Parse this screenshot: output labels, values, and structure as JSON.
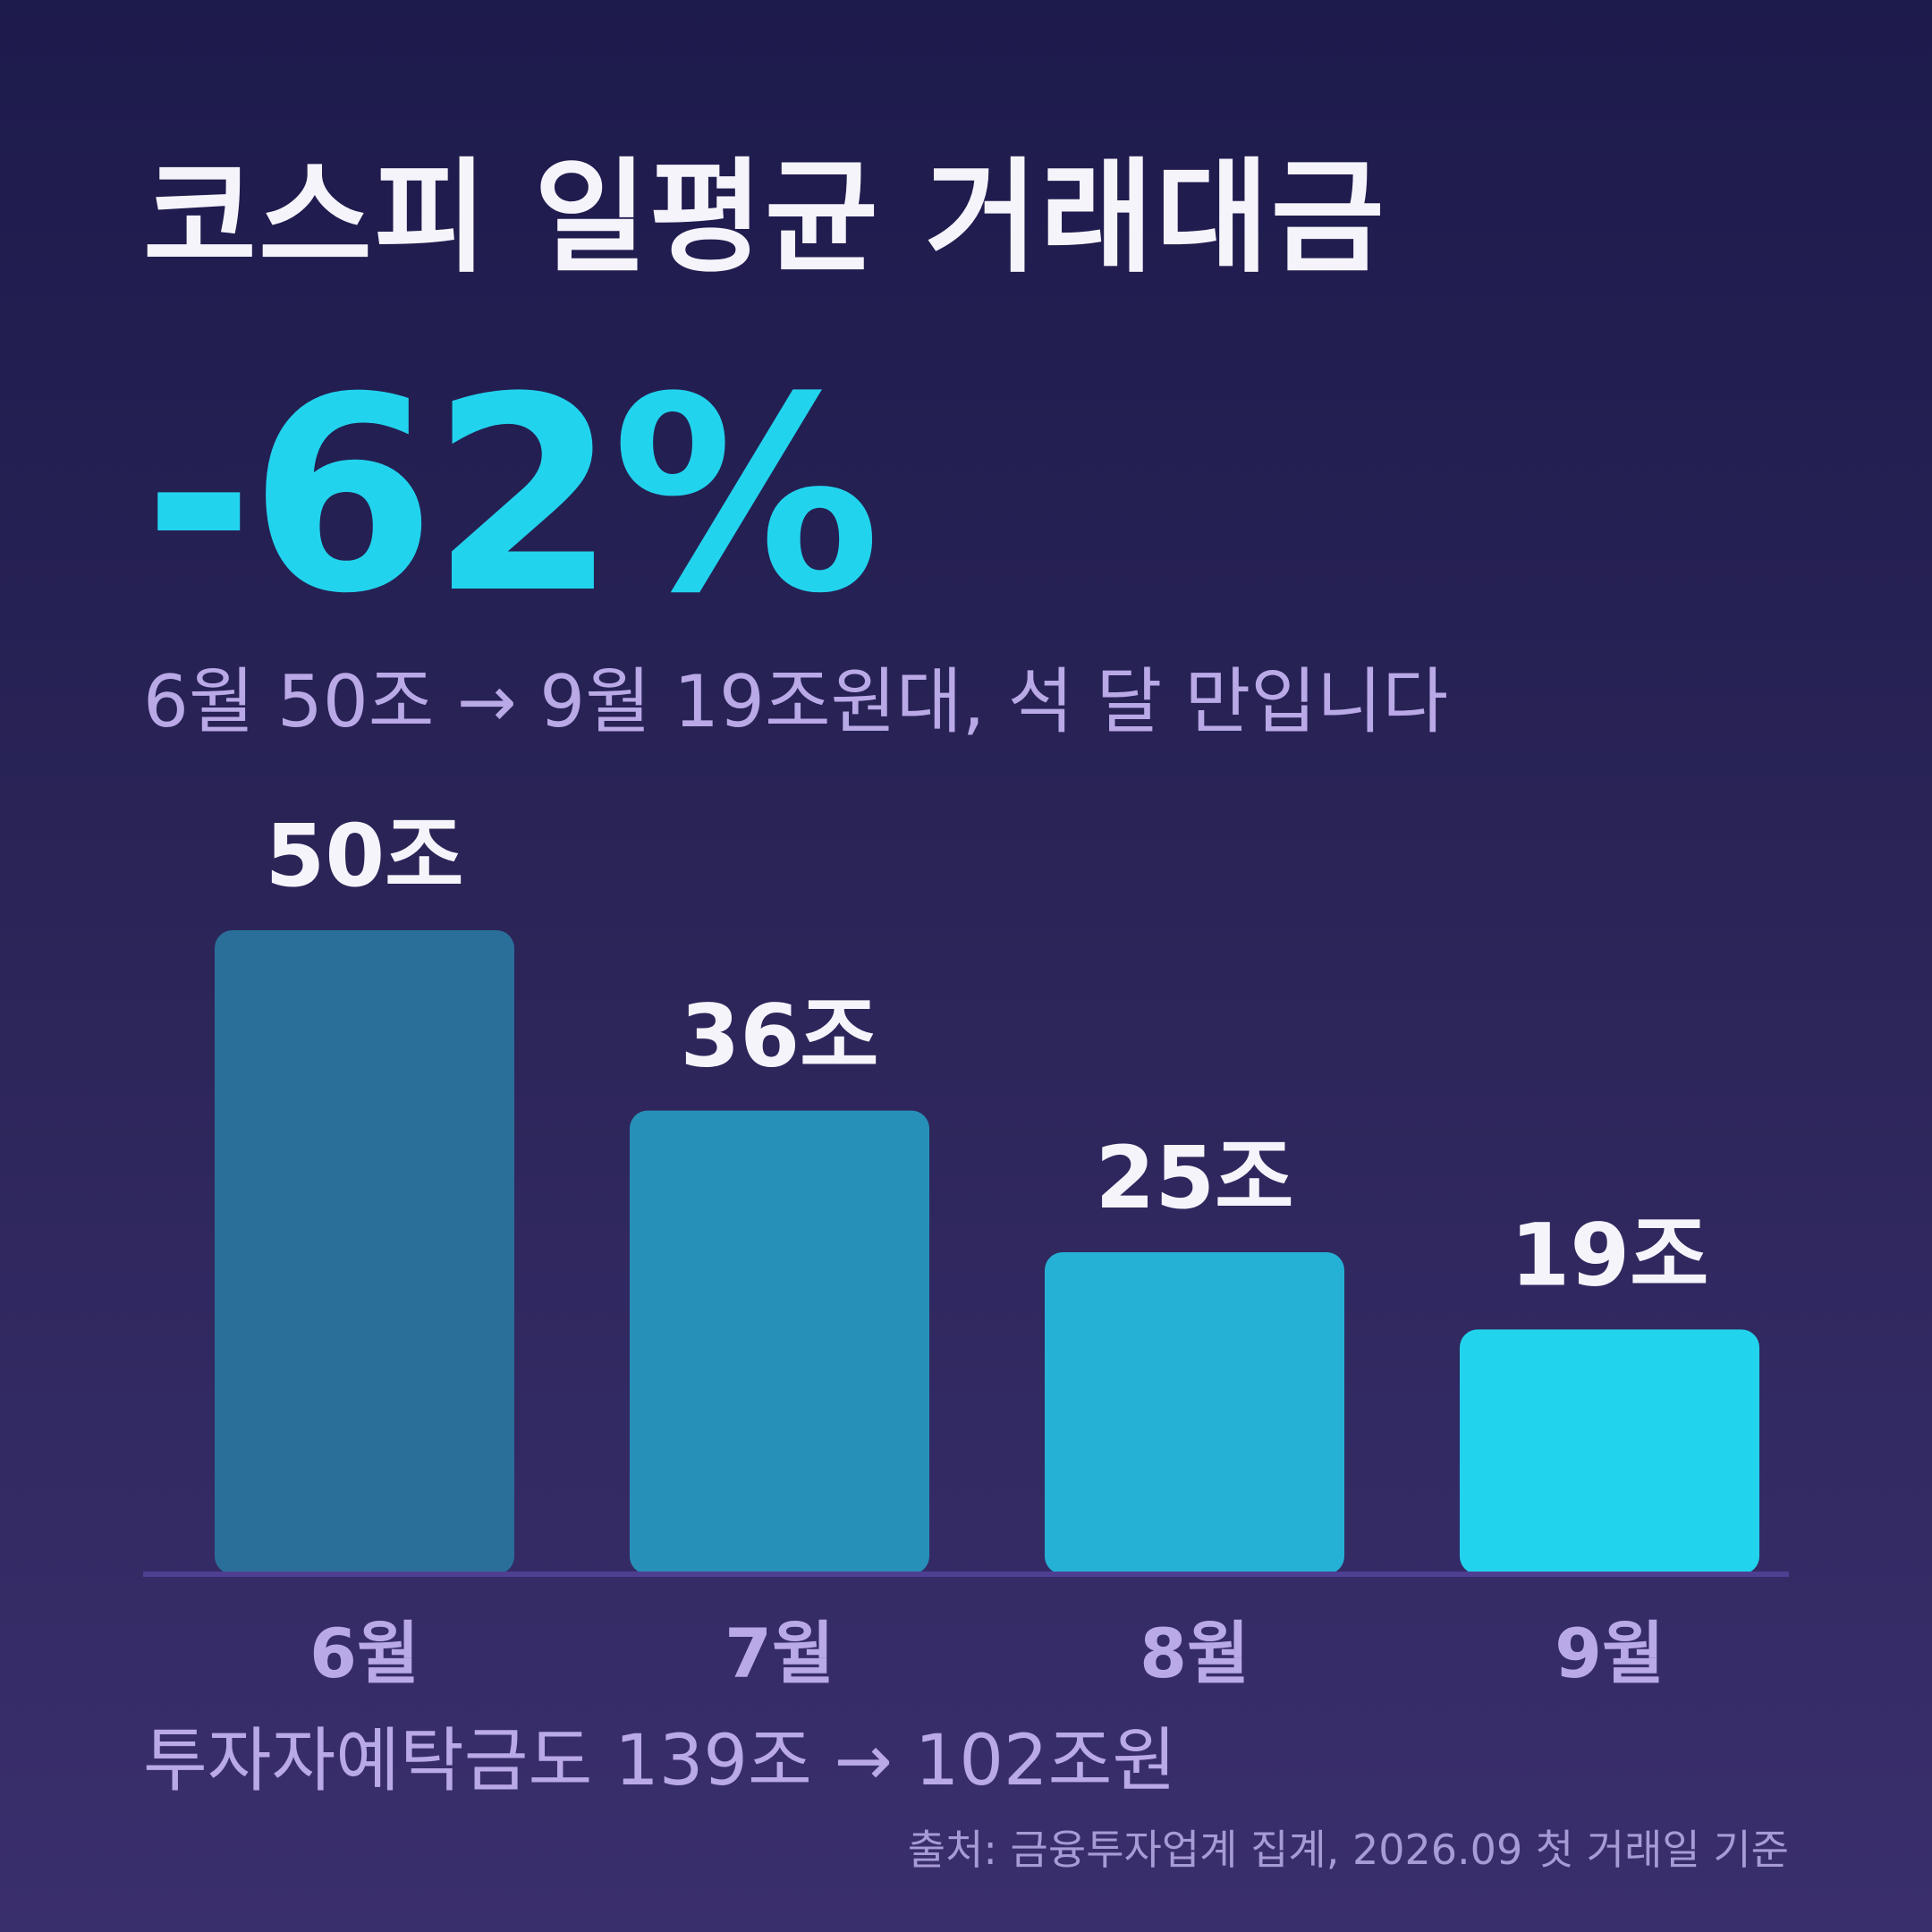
{
  "title": "코스피 일평균 거래대금",
  "headline": "-62%",
  "subtitle": "6월 50조 → 9월 19조원대, 석 달 만입니다",
  "footnote": "투자자예탁금도 139조 → 102조원",
  "source": "출처: 금융투자업계 집계, 2026.09 첫 거래일 기준",
  "colors": {
    "headline": "#22d3ee",
    "bars": [
      "#2a6f9a",
      "#2790b8",
      "#25b1d5",
      "#22d3ee"
    ],
    "axis": "#4f3f92",
    "category_label": "#b9a9e6",
    "value_label": "#f6f4fb"
  },
  "chart_data": {
    "type": "bar",
    "categories": [
      "6월",
      "7월",
      "8월",
      "9월"
    ],
    "values": [
      50,
      36,
      25,
      19
    ],
    "value_labels": [
      "50조",
      "36조",
      "25조",
      "19조"
    ],
    "ylim": [
      0,
      50
    ]
  }
}
